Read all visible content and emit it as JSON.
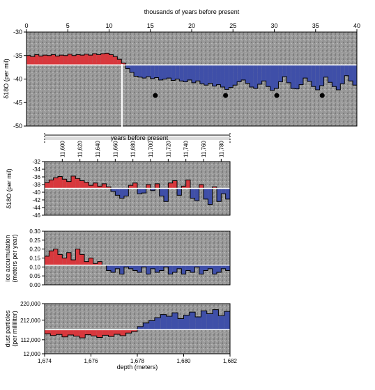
{
  "chart_data": [
    {
      "type": "area",
      "title": "",
      "xlabel": "thousands of years before present",
      "ylabel": "δ18O (per mil)",
      "xlim": [
        0,
        40
      ],
      "ylim": [
        -50,
        -30
      ],
      "y_inverted": true,
      "baseline": -37,
      "xticks": [
        "0",
        "5",
        "10",
        "15",
        "20",
        "25",
        "30",
        "35",
        "40"
      ],
      "yticks": [
        "-30",
        "-35",
        "-40",
        "-45",
        "-50"
      ],
      "x": [
        0,
        0.5,
        1,
        1.5,
        2,
        2.5,
        3,
        3.5,
        4,
        4.5,
        5,
        5.5,
        6,
        6.5,
        7,
        7.5,
        8,
        8.5,
        9,
        9.5,
        10,
        10.5,
        11,
        11.5,
        12,
        12.5,
        13,
        13.5,
        14,
        14.5,
        15,
        15.5,
        16,
        16.5,
        17,
        17.5,
        18,
        18.5,
        19,
        19.5,
        20,
        20.5,
        21,
        21.5,
        22,
        22.5,
        23,
        23.5,
        24,
        24.5,
        25,
        25.5,
        26,
        26.5,
        27,
        27.5,
        28,
        28.5,
        29,
        29.5,
        30,
        30.5,
        31,
        31.5,
        32,
        32.5,
        33,
        33.5,
        34,
        34.5,
        35,
        35.5,
        36,
        36.5,
        37,
        37.5,
        38,
        38.5,
        39,
        39.5,
        40
      ],
      "values": [
        -35.0,
        -35.2,
        -34.8,
        -35.1,
        -34.9,
        -35.0,
        -34.8,
        -35.1,
        -34.9,
        -35.0,
        -34.7,
        -35.0,
        -34.8,
        -34.9,
        -34.7,
        -34.9,
        -34.6,
        -34.8,
        -34.6,
        -34.5,
        -34.8,
        -35.2,
        -35.8,
        -36.6,
        -37.8,
        -38.6,
        -39.4,
        -39.6,
        -39.8,
        -39.5,
        -39.9,
        -39.7,
        -40.2,
        -40.0,
        -39.8,
        -40.3,
        -40.0,
        -40.4,
        -40.6,
        -40.2,
        -40.8,
        -40.4,
        -41.0,
        -41.3,
        -40.9,
        -41.5,
        -41.2,
        -41.7,
        -42.2,
        -41.8,
        -41.3,
        -40.6,
        -40.2,
        -40.9,
        -41.7,
        -42.0,
        -41.1,
        -40.4,
        -41.6,
        -42.4,
        -42.0,
        -40.6,
        -39.5,
        -40.8,
        -42.0,
        -42.1,
        -41.2,
        -39.8,
        -40.5,
        -41.6,
        -42.3,
        -41.4,
        -39.6,
        -40.7,
        -41.6,
        -42.3,
        -41.0,
        -39.3,
        -40.4,
        -41.3,
        -40.8
      ],
      "markers_x": [
        15.6,
        24.1,
        30.3,
        35.8
      ],
      "markers_y": [
        -43.5,
        -43.5,
        -43.5,
        -43.5
      ],
      "annotation_bottom": "years before present"
    },
    {
      "type": "area",
      "title": "",
      "xlabel": "",
      "ylabel": "δ18O (per mil)",
      "xlim": [
        11580,
        11790
      ],
      "ylim": [
        -46,
        -32
      ],
      "y_inverted": true,
      "baseline": -39,
      "xticks": [
        "11,600",
        "11,620",
        "11,640",
        "11,660",
        "11,680",
        "11,700",
        "11,720",
        "11,740",
        "11,760",
        "11,780"
      ],
      "yticks": [
        "-32",
        "-34",
        "-36",
        "-38",
        "-40",
        "-42",
        "-44",
        "-46"
      ],
      "x": [
        11580,
        11585,
        11590,
        11595,
        11600,
        11605,
        11610,
        11615,
        11620,
        11625,
        11630,
        11635,
        11640,
        11645,
        11650,
        11655,
        11660,
        11665,
        11670,
        11675,
        11680,
        11685,
        11690,
        11695,
        11700,
        11705,
        11710,
        11715,
        11720,
        11725,
        11730,
        11735,
        11740,
        11745,
        11750,
        11755,
        11760,
        11765,
        11770,
        11775,
        11780,
        11785,
        11790
      ],
      "values": [
        -37.5,
        -36.8,
        -36.2,
        -35.9,
        -36.6,
        -37.2,
        -35.8,
        -36.4,
        -37.0,
        -37.4,
        -38.2,
        -37.6,
        -38.4,
        -37.8,
        -38.6,
        -39.8,
        -40.8,
        -41.6,
        -41.0,
        -38.2,
        -37.6,
        -40.4,
        -40.2,
        -38.0,
        -39.6,
        -37.8,
        -41.0,
        -42.4,
        -37.6,
        -37.0,
        -40.8,
        -38.4,
        -36.8,
        -41.6,
        -42.2,
        -38.0,
        -41.8,
        -43.2,
        -38.6,
        -42.4,
        -40.4,
        -41.8,
        -40.0
      ]
    },
    {
      "type": "area",
      "title": "",
      "xlabel": "",
      "ylabel": "ice accumulation (meters per year)",
      "xlim": [
        11580,
        11790
      ],
      "ylim": [
        0.0,
        0.3
      ],
      "baseline": 0.11,
      "yticks": [
        "0.30",
        "0.25",
        "0.20",
        "0.15",
        "0.10",
        "0.05",
        "0.00"
      ],
      "x": [
        11580,
        11585,
        11590,
        11595,
        11600,
        11605,
        11610,
        11615,
        11620,
        11625,
        11630,
        11635,
        11640,
        11645,
        11650,
        11655,
        11660,
        11665,
        11670,
        11675,
        11680,
        11685,
        11690,
        11695,
        11700,
        11705,
        11710,
        11715,
        11720,
        11725,
        11730,
        11735,
        11740,
        11745,
        11750,
        11755,
        11760,
        11765,
        11770,
        11775,
        11780,
        11785,
        11790
      ],
      "values": [
        0.16,
        0.19,
        0.2,
        0.17,
        0.15,
        0.18,
        0.14,
        0.2,
        0.17,
        0.13,
        0.15,
        0.12,
        0.13,
        0.11,
        0.08,
        0.07,
        0.09,
        0.06,
        0.1,
        0.09,
        0.08,
        0.07,
        0.1,
        0.06,
        0.09,
        0.07,
        0.08,
        0.1,
        0.06,
        0.07,
        0.09,
        0.06,
        0.08,
        0.07,
        0.1,
        0.06,
        0.08,
        0.09,
        0.06,
        0.07,
        0.09,
        0.08,
        0.07
      ]
    },
    {
      "type": "area",
      "title": "",
      "xlabel": "depth (meters)",
      "ylabel": "dust particles (per milliliter)",
      "xlim": [
        1674,
        1682
      ],
      "ylim": [
        12000,
        220000
      ],
      "baseline": 112000,
      "xticks": [
        "1,674",
        "1,676",
        "1,678",
        "1,680",
        "1,682"
      ],
      "yticks": [
        "220,000",
        "212,000",
        "112,000",
        "12,000"
      ],
      "x": [
        1674,
        1674.25,
        1674.5,
        1674.75,
        1675,
        1675.25,
        1675.5,
        1675.75,
        1676,
        1676.25,
        1676.5,
        1676.75,
        1677,
        1677.25,
        1677.5,
        1677.75,
        1678,
        1678.25,
        1678.5,
        1678.75,
        1679,
        1679.25,
        1679.5,
        1679.75,
        1680,
        1680.25,
        1680.5,
        1680.75,
        1681,
        1681.25,
        1681.5,
        1681.75,
        1682
      ],
      "values": [
        95000,
        88000,
        92000,
        82000,
        90000,
        85000,
        78000,
        91000,
        86000,
        80000,
        89000,
        84000,
        93000,
        87000,
        98000,
        104000,
        125000,
        140000,
        150000,
        162000,
        175000,
        168000,
        182000,
        158000,
        172000,
        185000,
        165000,
        190000,
        178000,
        195000,
        170000,
        188000,
        200000
      ]
    }
  ]
}
